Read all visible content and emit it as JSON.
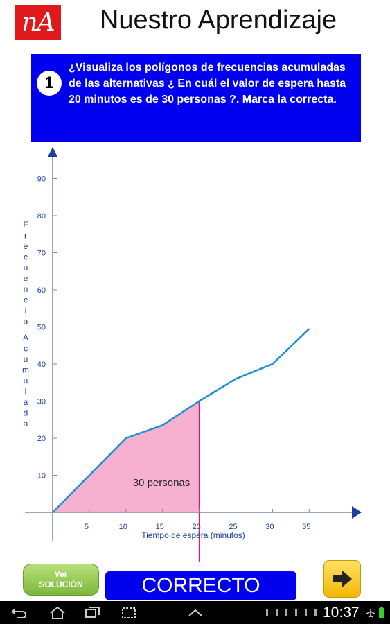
{
  "header": {
    "logo_text": "nA",
    "title": "Nuestro Aprendizaje"
  },
  "question": {
    "number": "1",
    "text": "¿Visualiza los polígonos de frecuencias acumuladas de las alternativas ¿ En cuál el valor de espera hasta 20 minutos es de 30 personas ?. Marca la correcta."
  },
  "chart_data": {
    "type": "line",
    "xlabel": "Tiempo de espera (minutos)",
    "ylabel": "Frecuencia Acumulada",
    "x_ticks": [
      "5",
      "10",
      "15",
      "20",
      "25",
      "30",
      "35"
    ],
    "y_ticks": [
      "10",
      "20",
      "30",
      "40",
      "50",
      "60",
      "70",
      "80",
      "90"
    ],
    "xlim": [
      0,
      40
    ],
    "ylim": [
      0,
      95
    ],
    "x": [
      0,
      10,
      15,
      20,
      25,
      30,
      35
    ],
    "y": [
      0,
      20,
      23.5,
      30,
      36,
      40,
      49.5
    ],
    "highlight_x": 20,
    "highlight_y": 30,
    "annotation": "30 personas",
    "line_color": "#1a8fd8",
    "fill_color": "#f4a3c8",
    "guide_color": "#e0147a",
    "axis_color": "#1b3fa0"
  },
  "buttons": {
    "ver_line1": "Ver",
    "ver_line2": "SOLUCIÓN",
    "correcto": "CORRECTO",
    "next": "next-arrow"
  },
  "status_bar": {
    "time": "10:37"
  }
}
